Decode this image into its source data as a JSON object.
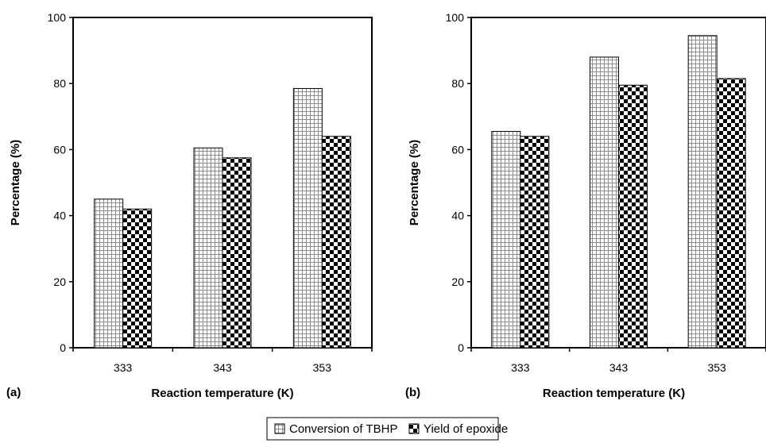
{
  "chart_data": [
    {
      "type": "bar",
      "panel_label": "(a)",
      "categories": [
        "333",
        "343",
        "353"
      ],
      "series": [
        {
          "name": "Conversion of TBHP",
          "values": [
            45,
            60.5,
            78.5
          ]
        },
        {
          "name": "Yield of epoxide",
          "values": [
            42,
            57.5,
            64
          ]
        }
      ],
      "xlabel": "Reaction temperature (K)",
      "ylabel": "Percentage (%)",
      "ylim": [
        0,
        100
      ],
      "yticks": [
        "0",
        "20",
        "40",
        "60",
        "80",
        "100"
      ],
      "grid": false
    },
    {
      "type": "bar",
      "panel_label": "(b)",
      "categories": [
        "333",
        "343",
        "353"
      ],
      "series": [
        {
          "name": "Conversion of TBHP",
          "values": [
            65.5,
            88,
            94.5
          ]
        },
        {
          "name": "Yield of epoxide",
          "values": [
            64,
            79.5,
            81.5
          ]
        }
      ],
      "xlabel": "Reaction temperature (K)",
      "ylabel": "Percentage (%)",
      "ylim": [
        0,
        100
      ],
      "yticks": [
        "0",
        "20",
        "40",
        "60",
        "80",
        "100"
      ],
      "grid": false
    }
  ],
  "legend": {
    "placement": "bottom-center",
    "items": [
      "Conversion of TBHP",
      "Yield of epoxide"
    ]
  }
}
